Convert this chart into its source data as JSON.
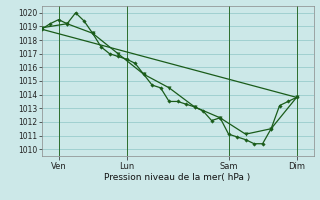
{
  "bg_color": "#cce8e8",
  "grid_color": "#99cccc",
  "line_color": "#1a5c1a",
  "marker_color": "#1a5c1a",
  "xlabel": "Pression niveau de la mer( hPa )",
  "ylim": [
    1009.5,
    1020.5
  ],
  "yticks": [
    1010,
    1011,
    1012,
    1013,
    1014,
    1015,
    1016,
    1017,
    1018,
    1019,
    1020
  ],
  "day_labels": [
    "Ven",
    "Lun",
    "Sam",
    "Dim"
  ],
  "day_positions": [
    1,
    5,
    11,
    15
  ],
  "xlim": [
    0,
    16
  ],
  "vline_positions": [
    1,
    5,
    11,
    15
  ],
  "series1_x": [
    0.0,
    0.5,
    1.0,
    1.5,
    2.0,
    2.5,
    3.0,
    3.5,
    4.0,
    4.5,
    5.0,
    5.5,
    6.0,
    6.5,
    7.0,
    7.5,
    8.0,
    8.5,
    9.0,
    9.5,
    10.0,
    10.5,
    11.0,
    11.5,
    12.0,
    12.5,
    13.0,
    13.5,
    14.0,
    14.5,
    15.0
  ],
  "series1_y": [
    1018.8,
    1019.2,
    1019.5,
    1019.2,
    1020.0,
    1019.4,
    1018.5,
    1017.5,
    1017.0,
    1016.8,
    1016.6,
    1016.3,
    1015.5,
    1014.7,
    1014.5,
    1013.5,
    1013.5,
    1013.3,
    1013.1,
    1012.8,
    1012.1,
    1012.3,
    1011.1,
    1010.9,
    1010.7,
    1010.4,
    1010.4,
    1011.5,
    1013.2,
    1013.5,
    1013.8
  ],
  "series2_x": [
    0.0,
    1.5,
    3.0,
    4.5,
    6.0,
    7.5,
    9.0,
    10.5,
    12.0,
    13.5,
    15.0
  ],
  "series2_y": [
    1018.9,
    1019.2,
    1018.5,
    1017.0,
    1015.5,
    1014.5,
    1013.1,
    1012.3,
    1011.1,
    1011.5,
    1013.8
  ],
  "series3_x": [
    0.0,
    15.0
  ],
  "series3_y": [
    1018.8,
    1013.8
  ]
}
